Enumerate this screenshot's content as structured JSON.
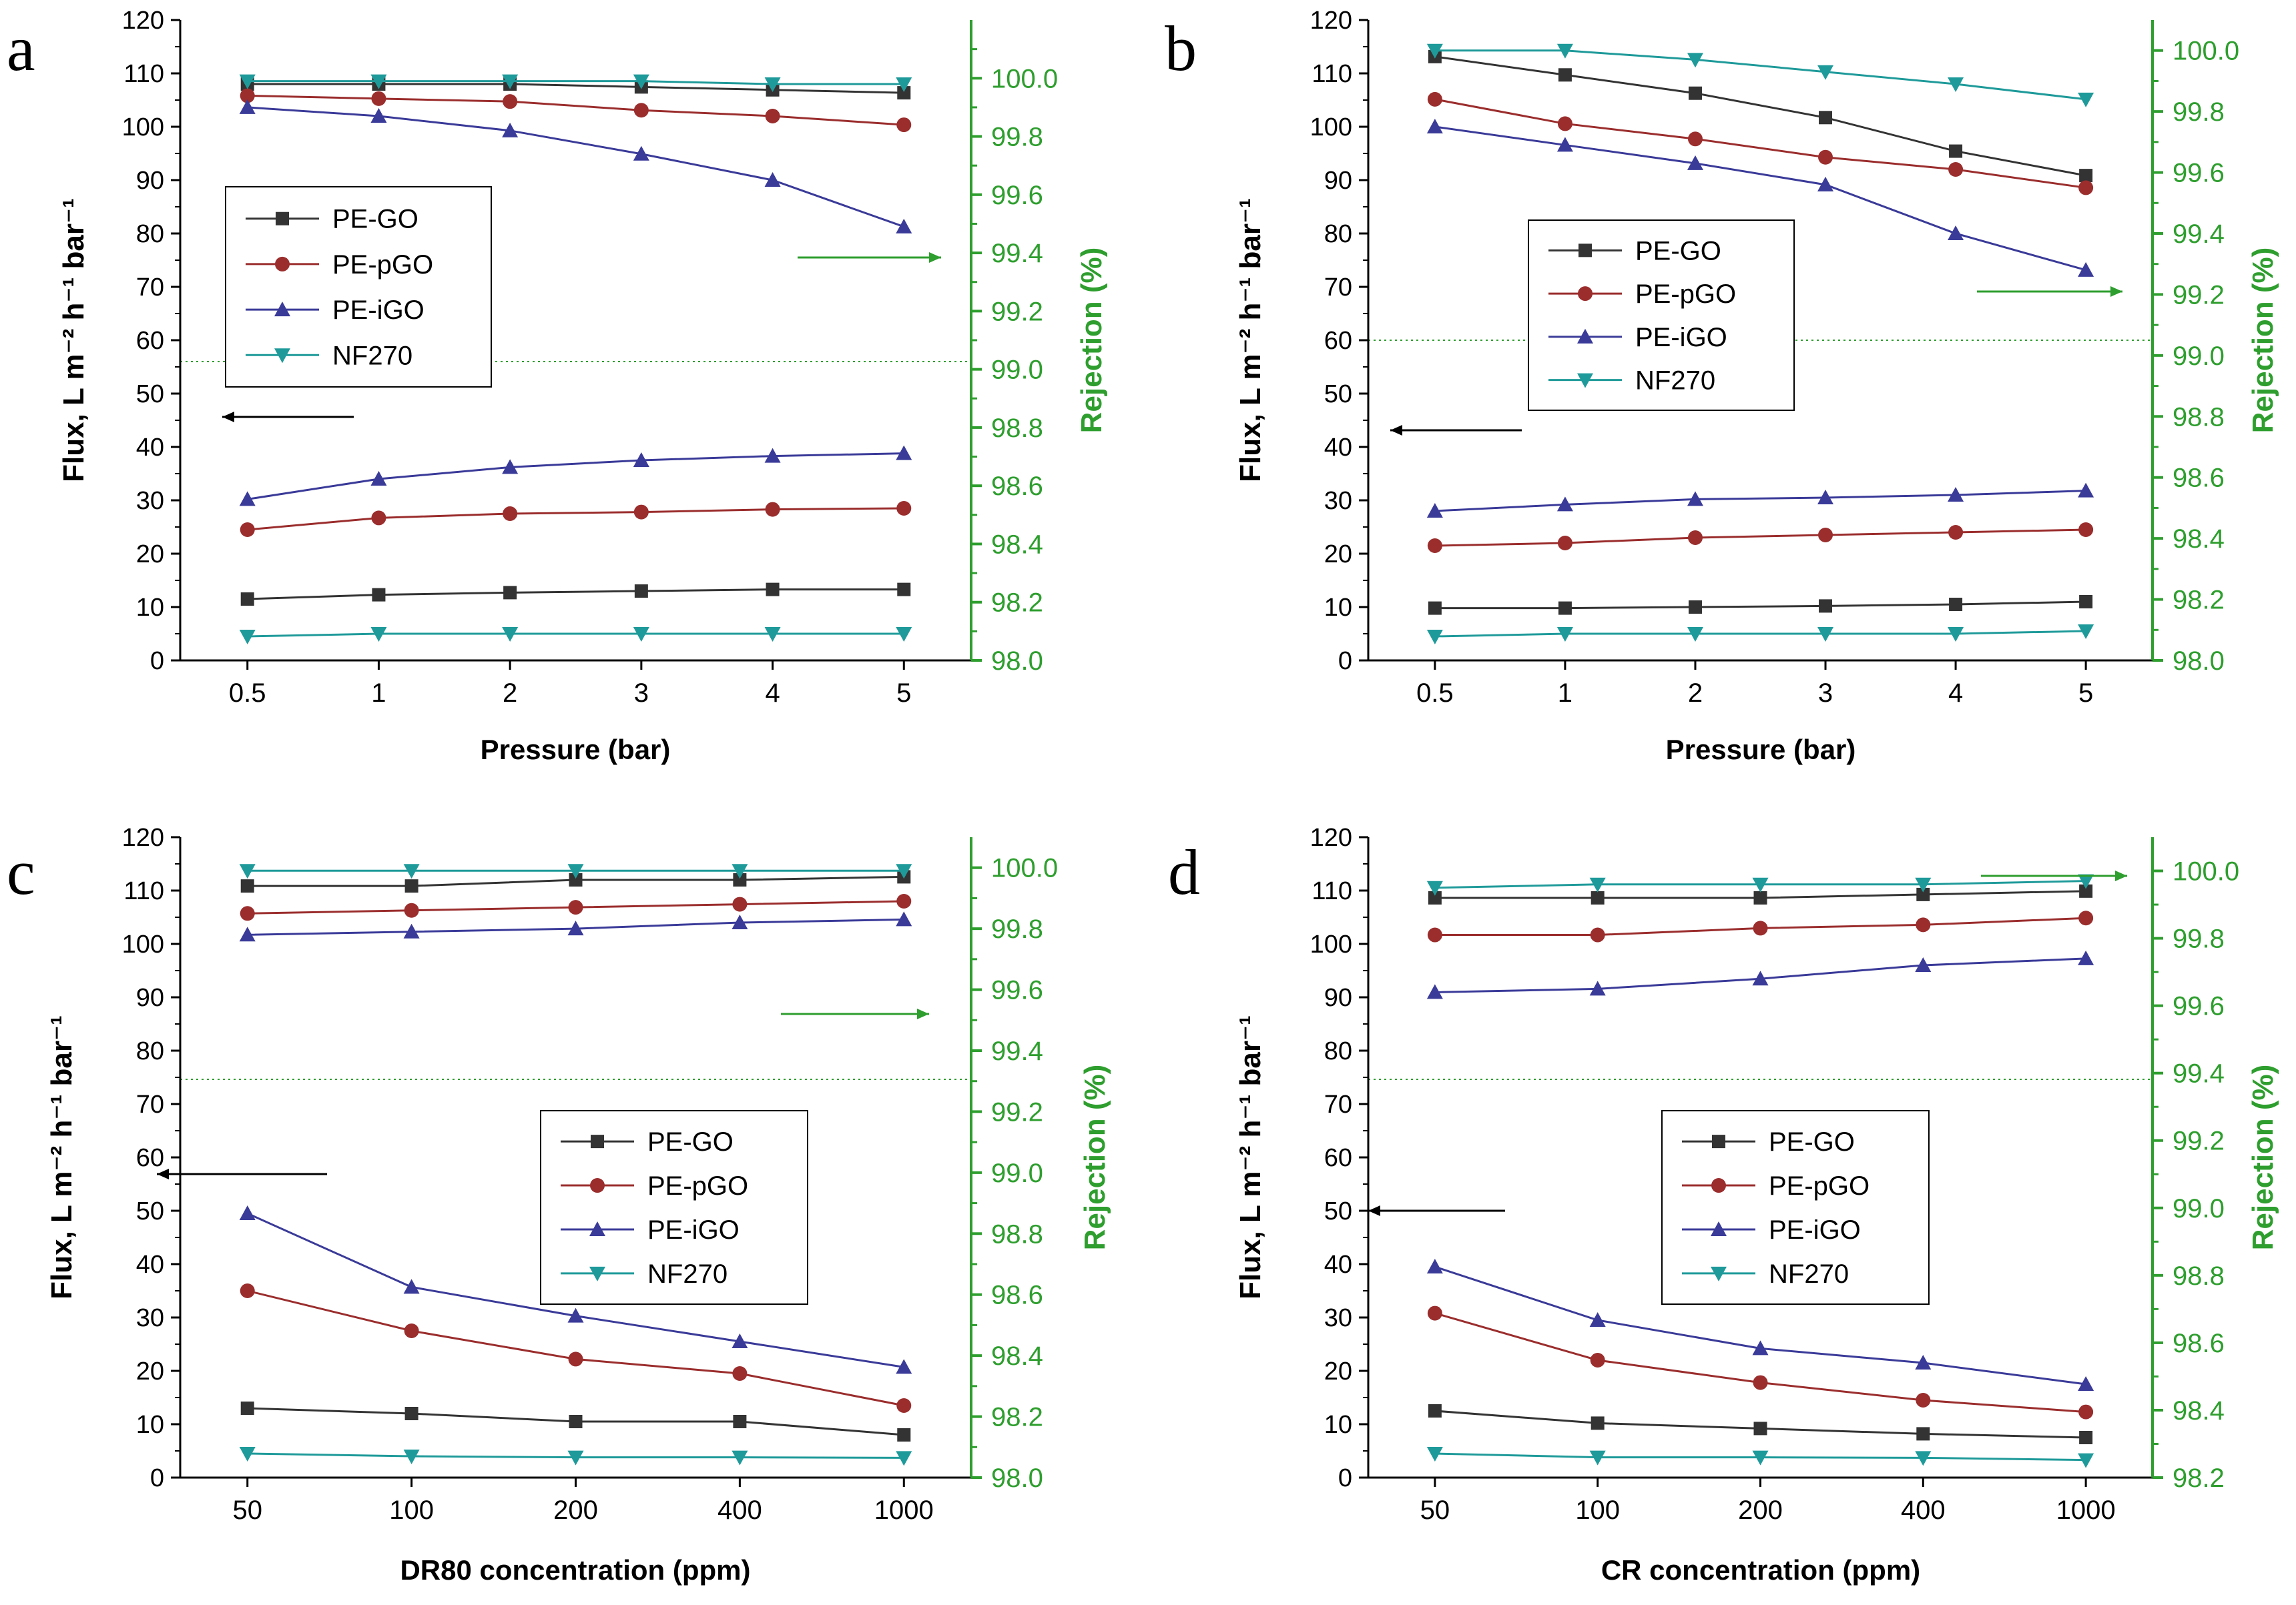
{
  "figure": {
    "legend_labels": [
      "PE-GO",
      "PE-pGO",
      "PE-iGO",
      "NF270"
    ],
    "colors": {
      "PE-GO": "#333333",
      "PE-pGO": "#9b2d2d",
      "PE-iGO": "#3a3a99",
      "NF270": "#1f9a9a",
      "right_axis": "#2e9e2e",
      "left_axis": "#000000"
    }
  },
  "chart_data": [
    {
      "panel": "a",
      "type": "line",
      "categories": [
        "0.5",
        "1",
        "2",
        "3",
        "4",
        "5"
      ],
      "xlabel": "Pressure (bar)",
      "ylabel": "Flux, L m⁻² h⁻¹ bar⁻¹",
      "ylim": [
        0,
        120
      ],
      "yticks": [
        0,
        10,
        20,
        30,
        40,
        50,
        60,
        70,
        80,
        90,
        100,
        110,
        120
      ],
      "y2label": "Rejection (%)",
      "y2lim": [
        98.0,
        100.2
      ],
      "y2ticks": [
        "98.0",
        "98.2",
        "98.4",
        "98.6",
        "98.8",
        "99.0",
        "99.2",
        "99.4",
        "99.6",
        "99.8",
        "100.0"
      ],
      "legend_position": "middle-left",
      "flux": [
        {
          "name": "PE-GO",
          "values": [
            11.5,
            12.3,
            12.7,
            13.0,
            13.3,
            13.3
          ]
        },
        {
          "name": "PE-pGO",
          "values": [
            24.5,
            26.7,
            27.5,
            27.8,
            28.3,
            28.5
          ]
        },
        {
          "name": "PE-iGO",
          "values": [
            30.2,
            34.0,
            36.2,
            37.5,
            38.3,
            38.8
          ]
        },
        {
          "name": "NF270",
          "values": [
            4.5,
            5.0,
            5.0,
            5.0,
            5.0,
            5.0
          ]
        }
      ],
      "rejection": [
        {
          "name": "PE-GO",
          "values": [
            99.98,
            99.98,
            99.98,
            99.97,
            99.96,
            99.95
          ]
        },
        {
          "name": "PE-pGO",
          "values": [
            99.94,
            99.93,
            99.92,
            99.89,
            99.87,
            99.84
          ]
        },
        {
          "name": "PE-iGO",
          "values": [
            99.9,
            99.87,
            99.82,
            99.74,
            99.65,
            99.49
          ]
        },
        {
          "name": "NF270",
          "values": [
            99.99,
            99.99,
            99.99,
            99.99,
            99.98,
            99.98
          ]
        }
      ]
    },
    {
      "panel": "b",
      "type": "line",
      "categories": [
        "0.5",
        "1",
        "2",
        "3",
        "4",
        "5"
      ],
      "xlabel": "Pressure (bar)",
      "ylabel": "Flux, L m⁻² h⁻¹ bar⁻¹",
      "ylim": [
        0,
        120
      ],
      "yticks": [
        0,
        10,
        20,
        30,
        40,
        50,
        60,
        70,
        80,
        90,
        100,
        110,
        120
      ],
      "y2label": "Rejection (%)",
      "y2lim": [
        98.0,
        100.1
      ],
      "y2ticks": [
        "98.0",
        "98.2",
        "98.4",
        "98.6",
        "98.8",
        "99.0",
        "99.2",
        "99.4",
        "99.6",
        "99.8",
        "100.0"
      ],
      "legend_position": "middle-center",
      "flux": [
        {
          "name": "PE-GO",
          "values": [
            9.8,
            9.8,
            10.0,
            10.2,
            10.5,
            11.0
          ]
        },
        {
          "name": "PE-pGO",
          "values": [
            21.5,
            22.0,
            23.0,
            23.5,
            24.0,
            24.5
          ]
        },
        {
          "name": "PE-iGO",
          "values": [
            28.0,
            29.2,
            30.2,
            30.5,
            31.0,
            31.8
          ]
        },
        {
          "name": "NF270",
          "values": [
            4.5,
            5.0,
            5.0,
            5.0,
            5.0,
            5.5
          ]
        }
      ],
      "rejection": [
        {
          "name": "PE-GO",
          "values": [
            99.98,
            99.92,
            99.86,
            99.78,
            99.67,
            99.59
          ]
        },
        {
          "name": "PE-pGO",
          "values": [
            99.84,
            99.76,
            99.71,
            99.65,
            99.61,
            99.55
          ]
        },
        {
          "name": "PE-iGO",
          "values": [
            99.75,
            99.69,
            99.63,
            99.56,
            99.4,
            99.28
          ]
        },
        {
          "name": "NF270",
          "values": [
            100.0,
            100.0,
            99.97,
            99.93,
            99.89,
            99.84
          ]
        }
      ]
    },
    {
      "panel": "c",
      "type": "line",
      "categories": [
        "50",
        "100",
        "200",
        "400",
        "1000"
      ],
      "xlabel": "DR80 concentration (ppm)",
      "ylabel": "Flux, L m⁻² h⁻¹ bar⁻¹",
      "ylim": [
        0,
        120
      ],
      "yticks": [
        0,
        10,
        20,
        30,
        40,
        50,
        60,
        70,
        80,
        90,
        100,
        110,
        120
      ],
      "y2label": "Rejection (%)",
      "y2lim": [
        98.0,
        100.1
      ],
      "y2ticks": [
        "98.0",
        "98.2",
        "98.4",
        "98.6",
        "98.8",
        "99.0",
        "99.2",
        "99.4",
        "99.6",
        "99.8",
        "100.0"
      ],
      "legend_position": "middle-right",
      "flux": [
        {
          "name": "PE-GO",
          "values": [
            13.0,
            12.0,
            10.5,
            10.5,
            8.0
          ]
        },
        {
          "name": "PE-pGO",
          "values": [
            35.0,
            27.5,
            22.2,
            19.5,
            13.5
          ]
        },
        {
          "name": "PE-iGO",
          "values": [
            49.5,
            35.7,
            30.3,
            25.5,
            20.7
          ]
        },
        {
          "name": "NF270",
          "values": [
            4.5,
            4.0,
            3.8,
            3.8,
            3.7
          ]
        }
      ],
      "rejection": [
        {
          "name": "PE-GO",
          "values": [
            99.94,
            99.94,
            99.96,
            99.96,
            99.97
          ]
        },
        {
          "name": "PE-pGO",
          "values": [
            99.85,
            99.86,
            99.87,
            99.88,
            99.89
          ]
        },
        {
          "name": "PE-iGO",
          "values": [
            99.78,
            99.79,
            99.8,
            99.82,
            99.83
          ]
        },
        {
          "name": "NF270",
          "values": [
            99.99,
            99.99,
            99.99,
            99.99,
            99.99
          ]
        }
      ]
    },
    {
      "panel": "d",
      "type": "line",
      "categories": [
        "50",
        "100",
        "200",
        "400",
        "1000"
      ],
      "xlabel": "CR concentration (ppm)",
      "ylabel": "Flux, L m⁻² h⁻¹ bar⁻¹",
      "ylim": [
        0,
        120
      ],
      "yticks": [
        0,
        10,
        20,
        30,
        40,
        50,
        60,
        70,
        80,
        90,
        100,
        110,
        120
      ],
      "y2label": "Rejection (%)",
      "y2lim": [
        98.2,
        100.1
      ],
      "y2ticks": [
        "98.2",
        "98.4",
        "98.6",
        "98.8",
        "99.0",
        "99.2",
        "99.4",
        "99.6",
        "99.8",
        "100.0"
      ],
      "legend_position": "middle-center",
      "flux": [
        {
          "name": "PE-GO",
          "values": [
            12.5,
            10.2,
            9.2,
            8.2,
            7.5
          ]
        },
        {
          "name": "PE-pGO",
          "values": [
            30.8,
            22.0,
            17.8,
            14.5,
            12.3
          ]
        },
        {
          "name": "PE-iGO",
          "values": [
            39.5,
            29.5,
            24.2,
            21.5,
            17.5
          ]
        },
        {
          "name": "NF270",
          "values": [
            4.5,
            3.8,
            3.8,
            3.7,
            3.3
          ]
        }
      ],
      "rejection": [
        {
          "name": "PE-GO",
          "values": [
            99.92,
            99.92,
            99.92,
            99.93,
            99.94
          ]
        },
        {
          "name": "PE-pGO",
          "values": [
            99.81,
            99.81,
            99.83,
            99.84,
            99.86
          ]
        },
        {
          "name": "PE-iGO",
          "values": [
            99.64,
            99.65,
            99.68,
            99.72,
            99.74
          ]
        },
        {
          "name": "NF270",
          "values": [
            99.95,
            99.96,
            99.96,
            99.96,
            99.97
          ]
        }
      ]
    }
  ]
}
